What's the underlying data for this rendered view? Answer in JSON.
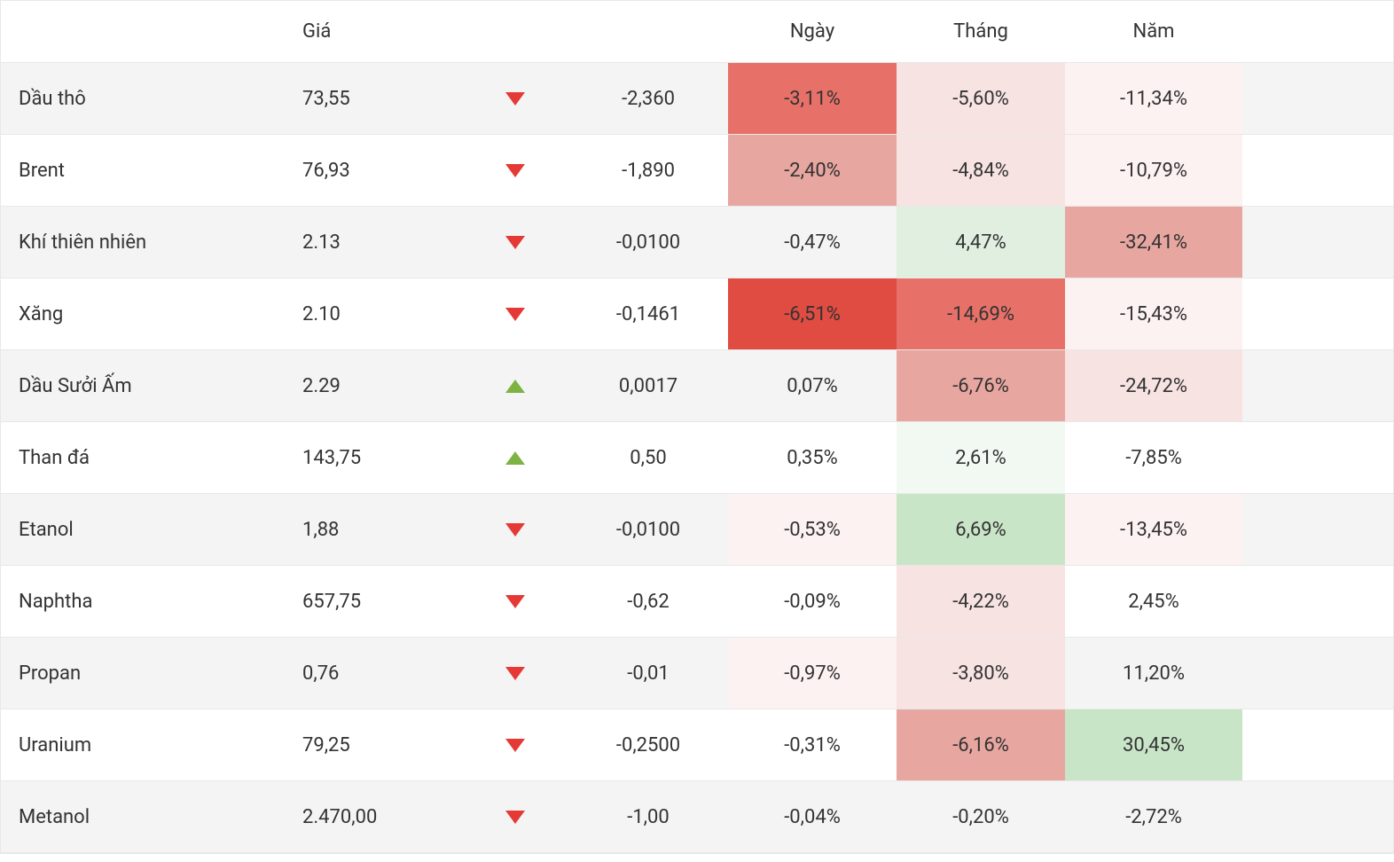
{
  "headers": {
    "name": "",
    "price": "Giá",
    "arrow": "",
    "change": "",
    "day": "Ngày",
    "month": "Tháng",
    "year": "Năm"
  },
  "colors": {
    "heatmap_neg_strongest": "#e04b42",
    "heatmap_neg_strong": "#e77168",
    "heatmap_neg_mid": "#e8a6a0",
    "heatmap_neg_light": "#f6e3e2",
    "heatmap_neg_faint": "#fbf2f1",
    "heatmap_pos_mid": "#c9e5c7",
    "heatmap_pos_light": "#e1efe1",
    "heatmap_pos_faint": "#f2f8f2",
    "none": "transparent"
  },
  "rows": [
    {
      "name": "Dầu thô",
      "price": "73,55",
      "direction": "down",
      "change": "-2,360",
      "day": "-3,11%",
      "day_color_key": "heatmap_neg_strong",
      "month": "-5,60%",
      "month_color_key": "heatmap_neg_light",
      "year": "-11,34%",
      "year_color_key": "heatmap_neg_faint"
    },
    {
      "name": "Brent",
      "price": "76,93",
      "direction": "down",
      "change": "-1,890",
      "day": "-2,40%",
      "day_color_key": "heatmap_neg_mid",
      "month": "-4,84%",
      "month_color_key": "heatmap_neg_light",
      "year": "-10,79%",
      "year_color_key": "heatmap_neg_faint"
    },
    {
      "name": "Khí thiên nhiên",
      "price": "2.13",
      "direction": "down",
      "change": "-0,0100",
      "day": "-0,47%",
      "day_color_key": "none",
      "month": "4,47%",
      "month_color_key": "heatmap_pos_light",
      "year": "-32,41%",
      "year_color_key": "heatmap_neg_mid"
    },
    {
      "name": "Xăng",
      "price": "2.10",
      "direction": "down",
      "change": "-0,1461",
      "day": "-6,51%",
      "day_color_key": "heatmap_neg_strongest",
      "month": "-14,69%",
      "month_color_key": "heatmap_neg_strong",
      "year": "-15,43%",
      "year_color_key": "heatmap_neg_faint"
    },
    {
      "name": "Dầu Sưởi Ấm",
      "price": "2.29",
      "direction": "up",
      "change": "0,0017",
      "day": "0,07%",
      "day_color_key": "none",
      "month": "-6,76%",
      "month_color_key": "heatmap_neg_mid",
      "year": "-24,72%",
      "year_color_key": "heatmap_neg_light"
    },
    {
      "name": "Than đá",
      "price": "143,75",
      "direction": "up",
      "change": "0,50",
      "day": "0,35%",
      "day_color_key": "none",
      "month": "2,61%",
      "month_color_key": "heatmap_pos_faint",
      "year": "-7,85%",
      "year_color_key": "none"
    },
    {
      "name": "Etanol",
      "price": "1,88",
      "direction": "down",
      "change": "-0,0100",
      "day": "-0,53%",
      "day_color_key": "heatmap_neg_faint",
      "month": "6,69%",
      "month_color_key": "heatmap_pos_mid",
      "year": "-13,45%",
      "year_color_key": "heatmap_neg_faint"
    },
    {
      "name": "Naphtha",
      "price": "657,75",
      "direction": "down",
      "change": "-0,62",
      "day": "-0,09%",
      "day_color_key": "none",
      "month": "-4,22%",
      "month_color_key": "heatmap_neg_light",
      "year": "2,45%",
      "year_color_key": "none"
    },
    {
      "name": "Propan",
      "price": "0,76",
      "direction": "down",
      "change": "-0,01",
      "day": "-0,97%",
      "day_color_key": "heatmap_neg_faint",
      "month": "-3,80%",
      "month_color_key": "heatmap_neg_light",
      "year": "11,20%",
      "year_color_key": "none"
    },
    {
      "name": "Uranium",
      "price": "79,25",
      "direction": "down",
      "change": "-0,2500",
      "day": "-0,31%",
      "day_color_key": "none",
      "month": "-6,16%",
      "month_color_key": "heatmap_neg_mid",
      "year": "30,45%",
      "year_color_key": "heatmap_pos_mid"
    },
    {
      "name": "Metanol",
      "price": "2.470,00",
      "direction": "down",
      "change": "-1,00",
      "day": "-0,04%",
      "day_color_key": "none",
      "month": "-0,20%",
      "month_color_key": "none",
      "year": "-2,72%",
      "year_color_key": "none"
    }
  ]
}
